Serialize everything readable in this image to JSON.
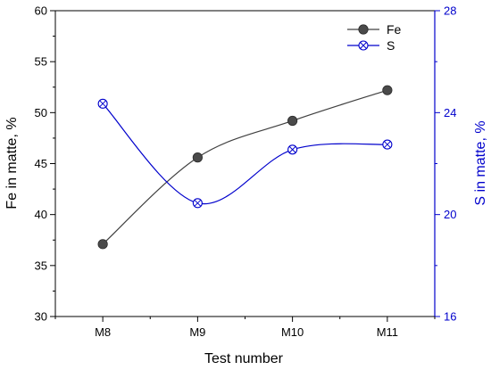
{
  "chart_data": {
    "type": "line",
    "categories": [
      "M8",
      "M9",
      "M10",
      "M11"
    ],
    "xlabel": "Test number",
    "y_left": {
      "label": "Fe in matte, %",
      "ylim": [
        30,
        60
      ],
      "ticks": [
        30,
        35,
        40,
        45,
        50,
        55,
        60
      ],
      "color": "#000000"
    },
    "y_right": {
      "label": "S in matte, %",
      "ylim": [
        16,
        28
      ],
      "ticks": [
        16,
        20,
        24,
        28
      ],
      "color": "#0000cc"
    },
    "series": [
      {
        "name": "Fe",
        "axis": "left",
        "values": [
          37.1,
          45.6,
          49.2,
          52.2
        ],
        "line_color": "#404040",
        "marker": "filled-circle",
        "marker_color": "#4a4a4a"
      },
      {
        "name": "S",
        "axis": "right",
        "values": [
          24.35,
          20.45,
          22.55,
          22.75
        ],
        "line_color": "#0000cc",
        "marker": "crossed-circle",
        "marker_color": "#0000cc"
      }
    ],
    "legend_position": "top-right",
    "grid": false
  }
}
